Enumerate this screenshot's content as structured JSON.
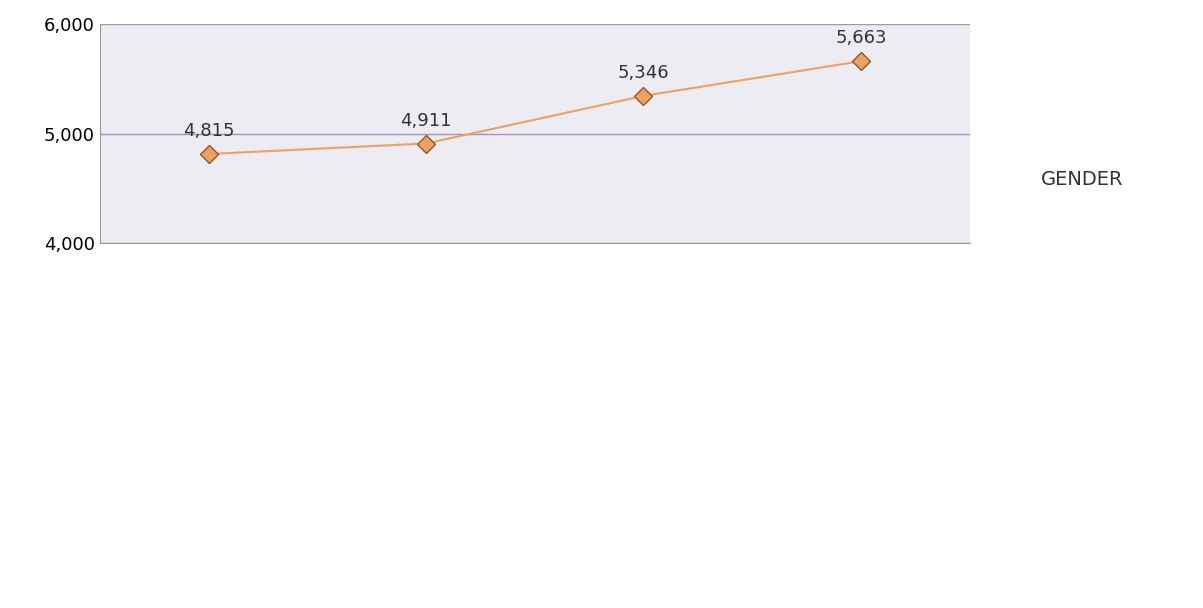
{
  "chart_data": {
    "type": "line",
    "categories": [
      null,
      null,
      null,
      null
    ],
    "values": [
      4815,
      4911,
      5346,
      5663
    ],
    "value_labels": [
      "4,815",
      "4,911",
      "5,346",
      "5,663"
    ],
    "data_labels": true,
    "color": "#f0a060",
    "marker": "diamond",
    "line_style": "solid",
    "ylim": [
      4000,
      6000
    ],
    "yticks": [
      {
        "value": 4000,
        "label": "4,000"
      },
      {
        "value": 5000,
        "label": "5,000"
      },
      {
        "value": 6000,
        "label": "6,000"
      }
    ],
    "grid": true,
    "tick_labels": "y",
    "annotations": [
      "GENDER"
    ]
  }
}
